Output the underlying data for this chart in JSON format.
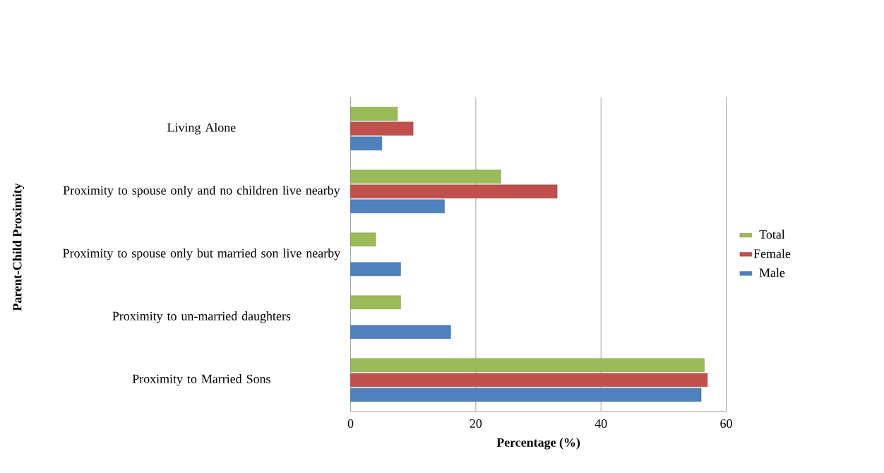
{
  "chart_data": {
    "type": "bar",
    "orientation": "horizontal",
    "ylabel": "Parent-Child Proximity",
    "xlabel": "Percentage (%)",
    "categories": [
      "Living Alone",
      "Proximity to spouse only and no children live nearby",
      "Proximity to spouse only but married son live nearby",
      "Proximity to  un-married daughters",
      "Proximity to Married Sons"
    ],
    "series": [
      {
        "name": "Male",
        "color": "#4f81bd",
        "values": [
          5,
          15,
          8,
          16,
          56
        ]
      },
      {
        "name": "Female",
        "color": "#c0504d",
        "values": [
          10,
          33,
          null,
          null,
          57
        ]
      },
      {
        "name": "Total",
        "color": "#9bbb59",
        "values": [
          7.5,
          24,
          4,
          8,
          56.5
        ]
      }
    ],
    "xlim": [
      0,
      60
    ],
    "xticks": [
      0,
      20,
      40,
      60
    ],
    "grid": "x",
    "legend": "right"
  }
}
